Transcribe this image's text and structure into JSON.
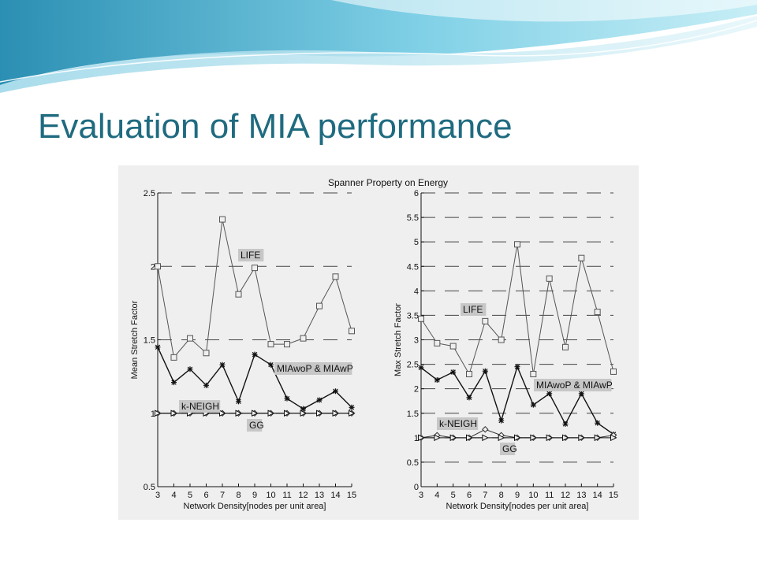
{
  "slide": {
    "title": "Evaluation of MIA performance"
  },
  "chart_data": [
    {
      "type": "line",
      "title": "Spanner Property on Energy",
      "xlabel": "Network Density[nodes per unit area]",
      "ylabel": "Mean Stretch Factor",
      "xlim": [
        3,
        15
      ],
      "ylim": [
        0.5,
        2.5
      ],
      "grid": "dashed horizontal",
      "x": [
        3,
        4,
        5,
        6,
        7,
        8,
        9,
        10,
        11,
        12,
        13,
        14,
        15
      ],
      "yticks": [
        0.5,
        1,
        1.5,
        2,
        2.5
      ],
      "ytick_labels": [
        "0.5",
        "1",
        "1.5",
        "2",
        "2.5"
      ],
      "series": [
        {
          "name": "LIFE",
          "marker": "square",
          "color": "#555555",
          "values": [
            2.0,
            1.38,
            1.51,
            1.41,
            2.32,
            1.81,
            1.99,
            1.47,
            1.47,
            1.51,
            1.73,
            1.93,
            1.56
          ]
        },
        {
          "name": "MIAwoP & MIAwP",
          "marker": "star",
          "color": "#111111",
          "values": [
            1.45,
            1.21,
            1.3,
            1.19,
            1.33,
            1.08,
            1.4,
            1.33,
            1.1,
            1.03,
            1.09,
            1.15,
            1.04
          ]
        },
        {
          "name": "k-NEIGH",
          "marker": "diamond",
          "color": "#333333",
          "values": [
            1.0,
            1.0,
            1.0,
            1.0,
            1.0,
            1.0,
            1.0,
            1.0,
            1.0,
            1.0,
            1.0,
            1.0,
            1.0
          ]
        },
        {
          "name": "GG",
          "marker": "triangle-right",
          "color": "#111111",
          "values": [
            1.0,
            1.0,
            1.0,
            1.0,
            1.0,
            1.0,
            1.0,
            1.0,
            1.0,
            1.0,
            1.0,
            1.0,
            1.0
          ]
        }
      ]
    },
    {
      "type": "line",
      "title": "",
      "xlabel": "Network Density[nodes per unit area]",
      "ylabel": "Max Stretch Factor",
      "xlim": [
        3,
        15
      ],
      "ylim": [
        0,
        6
      ],
      "grid": "dashed horizontal",
      "x": [
        3,
        4,
        5,
        6,
        7,
        8,
        9,
        10,
        11,
        12,
        13,
        14,
        15
      ],
      "yticks": [
        0,
        0.5,
        1,
        1.5,
        2,
        2.5,
        3,
        3.5,
        4,
        4.5,
        5,
        5.5,
        6
      ],
      "ytick_labels": [
        "0",
        "0.5",
        "1",
        "1.5",
        "2",
        "2.5",
        "3",
        "3.5",
        "4",
        "4.5",
        "5",
        "5.5",
        "6"
      ],
      "series": [
        {
          "name": "LIFE",
          "marker": "square",
          "color": "#555555",
          "values": [
            3.43,
            2.93,
            2.87,
            2.3,
            3.38,
            3.0,
            4.95,
            2.3,
            4.25,
            2.85,
            4.67,
            3.57,
            2.35
          ]
        },
        {
          "name": "MIAwoP & MIAwP",
          "marker": "star",
          "color": "#111111",
          "values": [
            2.43,
            2.18,
            2.34,
            1.82,
            2.36,
            1.35,
            2.45,
            1.67,
            1.9,
            1.28,
            1.9,
            1.3,
            1.07
          ]
        },
        {
          "name": "k-NEIGH",
          "marker": "diamond",
          "color": "#333333",
          "values": [
            1.0,
            1.05,
            1.0,
            1.0,
            1.17,
            1.05,
            1.0,
            1.0,
            1.0,
            1.0,
            1.0,
            1.0,
            1.05
          ]
        },
        {
          "name": "GG",
          "marker": "triangle-right",
          "color": "#111111",
          "values": [
            1.0,
            1.0,
            1.0,
            1.0,
            1.0,
            1.0,
            1.0,
            1.0,
            1.0,
            1.0,
            1.0,
            1.0,
            1.0
          ]
        }
      ]
    }
  ]
}
